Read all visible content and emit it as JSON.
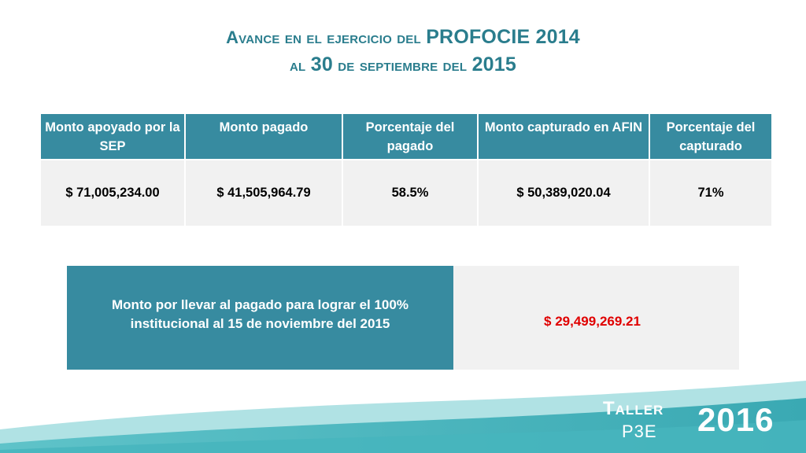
{
  "title": {
    "line1_prefix": "Avance en el ejercicio del ",
    "line1_emphasis": "PROFOCIE 2014",
    "line2_prefix": "al ",
    "line2_day": "30",
    "line2_middle": " de septiembre del ",
    "line2_year": "2015"
  },
  "table": {
    "headers": [
      "Monto apoyado por la SEP",
      "Monto pagado",
      "Porcentaje del pagado",
      "Monto capturado en AFIN",
      "Porcentaje del capturado"
    ],
    "row": [
      "$ 71,005,234.00",
      "$ 41,505,964.79",
      "58.5%",
      "$ 50,389,020.04",
      "71%"
    ]
  },
  "pending": {
    "label": "Monto por llevar al pagado para lograr el 100% institucional al 15 de noviembre del 2015",
    "value": "$ 29,499,269.21",
    "value_color": "#e00000"
  },
  "brand": {
    "taller": "Taller",
    "p3e": "P3E",
    "year": "2016"
  },
  "colors": {
    "accent": "#378ba0",
    "title": "#2a7d8d",
    "cell_bg": "#f1f1f1"
  }
}
